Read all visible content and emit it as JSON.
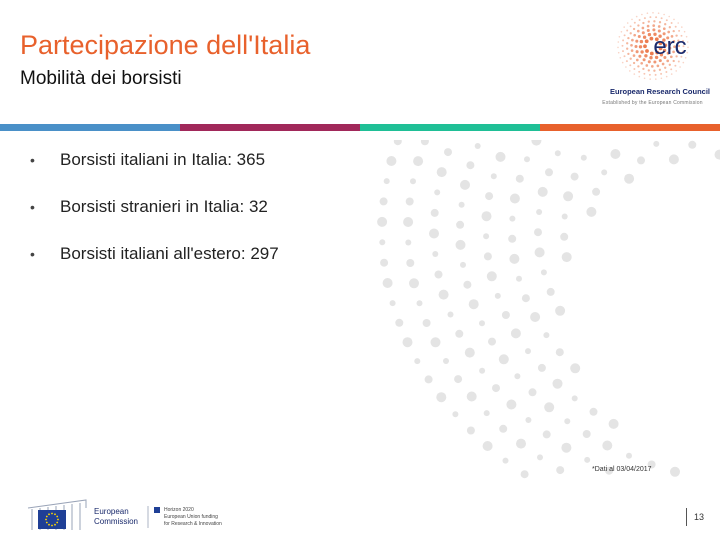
{
  "slide": {
    "title": "Partecipazione dell'Italia",
    "subtitle": "Mobilità dei borsisti",
    "bullets": [
      "Borsisti italiani in Italia: 365",
      "Borsisti stranieri in Italia: 32",
      "Borsisti italiani all'estero: 297"
    ],
    "footnote": "*Dati al 03/04/2017",
    "page_number": "13"
  },
  "erc_logo": {
    "wordmark": "erc",
    "name": "European Research Council",
    "tagline": "Established by the European Commission"
  },
  "ec_logo": {
    "line1": "European",
    "line2": "Commission",
    "program": [
      "Horizon 2020",
      "European Union funding",
      "for Research & Innovation"
    ]
  },
  "colors": {
    "title": "#e8612c",
    "band": [
      "#4a90c8",
      "#a1285a",
      "#1fbf96",
      "#e8612c"
    ],
    "erc_blue": "#1a2a6c",
    "eu_flag": "#1f3f96",
    "eu_star": "#ffd700"
  }
}
